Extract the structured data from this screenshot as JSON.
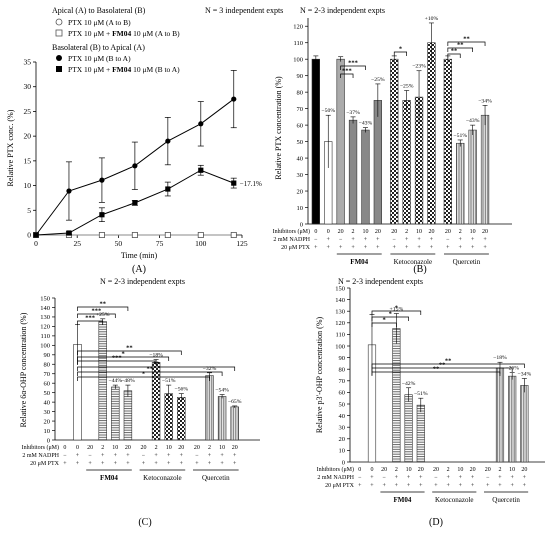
{
  "chart_data": [
    {
      "type": "line",
      "panel_label": "(A)",
      "n_note": "N = 3 independent expts",
      "xlabel": "Time (min)",
      "ylabel": "Relative PTX conc. (%)",
      "xlim": [
        0,
        125
      ],
      "ylim": [
        0,
        35
      ],
      "xticks": [
        "0",
        "25",
        "50",
        "75",
        "100",
        "125"
      ],
      "yticks": [
        "0",
        "5",
        "10",
        "15",
        "20",
        "25",
        "30",
        "35"
      ],
      "legend": {
        "heading1": "Apical (A) to Basolateral (B)",
        "item1": "PTX 10 μM (A to B)",
        "item2a": "PTX 10 μM + ",
        "item2b": "FM04",
        "item2c": " 10 μM (A to B)",
        "heading2": "Basolateral (B) to Apical (A)",
        "item3": "PTX 10 μM (B to A)",
        "item4a": "PTX 10 μM + ",
        "item4b": "FM04",
        "item4c": " 10 μM (B to A)"
      },
      "annotation": "−17.1%",
      "series": [
        {
          "marker": "open-circle",
          "x": [
            0,
            20,
            40,
            60,
            80,
            100,
            120
          ],
          "y": [
            0,
            0,
            0,
            0,
            0,
            0,
            0
          ],
          "err": [
            0,
            0,
            0,
            0,
            0,
            0,
            0
          ]
        },
        {
          "marker": "open-square",
          "x": [
            0,
            20,
            40,
            60,
            80,
            100,
            120
          ],
          "y": [
            0,
            0,
            0,
            0,
            0,
            0,
            0
          ],
          "err": [
            0,
            0,
            0,
            0,
            0,
            0,
            0
          ]
        },
        {
          "marker": "filled-circle",
          "x": [
            0,
            20,
            40,
            60,
            80,
            100,
            120
          ],
          "y": [
            0,
            8.9,
            11.1,
            14,
            19,
            22.5,
            27.5
          ],
          "err": [
            0,
            5.9,
            4.5,
            4.8,
            4.8,
            4.5,
            5.8
          ]
        },
        {
          "marker": "filled-square",
          "x": [
            0,
            20,
            40,
            60,
            80,
            100,
            120
          ],
          "y": [
            0,
            0.4,
            4.1,
            6.5,
            9.3,
            13.1,
            10.5
          ],
          "err": [
            0,
            0.3,
            1.4,
            0.5,
            1.4,
            1,
            1
          ]
        }
      ]
    },
    {
      "type": "bar",
      "panel_label": "(B)",
      "n_note": "N = 2-3 independent expts",
      "ylabel": "Relative PTX concentration (%)",
      "ylim": [
        0,
        125
      ],
      "yticks": [
        "0",
        "10",
        "20",
        "30",
        "40",
        "50",
        "60",
        "70",
        "80",
        "90",
        "100",
        "110",
        "120"
      ],
      "rows": {
        "inhibitors": "Inhibitors (μM)",
        "nadph": "2 mM NADPH",
        "ptx": "20 μM PTX"
      },
      "inhibitor_values": [
        "0",
        "0",
        "20",
        "2",
        "10",
        "20",
        "20",
        "2",
        "10",
        "20",
        "20",
        "2",
        "10",
        "20"
      ],
      "nadph_values": [
        "−",
        "+",
        "−",
        "+",
        "+",
        "+",
        "−",
        "+",
        "+",
        "+",
        "−",
        "+",
        "+",
        "+"
      ],
      "ptx_values": [
        "+",
        "+",
        "+",
        "+",
        "+",
        "+",
        "+",
        "+",
        "+",
        "+",
        "+",
        "+",
        "+",
        "+"
      ],
      "groups": [
        {
          "name": "FM04",
          "bold": true
        },
        {
          "name": "Ketoconazole",
          "bold": false
        },
        {
          "name": "Quercetin",
          "bold": false
        }
      ],
      "values": [
        100,
        50,
        100,
        63,
        57,
        75,
        100,
        75,
        77,
        110,
        100,
        49,
        57,
        66
      ],
      "errors": [
        2,
        16,
        1.5,
        2,
        1.5,
        10,
        2,
        6,
        16,
        12,
        2,
        2,
        3,
        6
      ],
      "pct_labels": [
        "",
        "−50%",
        "",
        "−37%",
        "−43%",
        "−25%",
        "",
        "−25%",
        "−23%",
        "+10%",
        "",
        "−51%",
        "−43%",
        "−34%"
      ],
      "sig": [
        {
          "from": 2,
          "to": 3,
          "label": "***"
        },
        {
          "from": 2,
          "to": 4,
          "label": "***"
        },
        {
          "from": 6,
          "to": 7,
          "label": "*"
        },
        {
          "from": 10,
          "to": 11,
          "label": "**"
        },
        {
          "from": 10,
          "to": 12,
          "label": "**"
        },
        {
          "from": 10,
          "to": 13,
          "label": "**"
        }
      ]
    },
    {
      "type": "bar",
      "panel_label": "(C)",
      "n_note": "N = 2-3 independent expts",
      "ylabel": "Relative 6α-OHP concentration (%)",
      "ylim": [
        0,
        150
      ],
      "yticks": [
        "0",
        "10",
        "20",
        "30",
        "40",
        "50",
        "60",
        "70",
        "80",
        "90",
        "100",
        "110",
        "120",
        "130",
        "140",
        "150"
      ],
      "rows": {
        "inhibitors": "Inhibitors (μM)",
        "nadph": "2 mM NADPH",
        "ptx": "20 μM PTX"
      },
      "inhibitor_values": [
        "0",
        "0",
        "20",
        "2",
        "10",
        "20",
        "20",
        "2",
        "10",
        "20",
        "20",
        "2",
        "10",
        "20"
      ],
      "nadph_values": [
        "−",
        "+",
        "−",
        "+",
        "+",
        "+",
        "−",
        "+",
        "+",
        "+",
        "−",
        "+",
        "+",
        "+"
      ],
      "ptx_values": [
        "+",
        "+",
        "+",
        "+",
        "+",
        "+",
        "+",
        "+",
        "+",
        "+",
        "+",
        "+",
        "+",
        "+"
      ],
      "groups": [
        {
          "name": "FM04",
          "bold": true
        },
        {
          "name": "Ketoconazole",
          "bold": false
        },
        {
          "name": "Quercetin",
          "bold": false
        }
      ],
      "values": [
        0,
        101,
        0,
        125,
        56,
        52,
        0,
        82,
        49,
        45,
        0,
        68,
        46,
        35
      ],
      "errors": [
        0,
        21,
        0,
        3,
        2,
        6,
        0,
        3,
        9,
        4,
        0,
        3,
        2,
        1
      ],
      "pct_labels": [
        "",
        "",
        "",
        "+25%",
        "−44%",
        "−48%",
        "",
        "−18%",
        "−51%",
        "−56%",
        "",
        "−32%",
        "−54%",
        "−65%"
      ],
      "sig": [
        {
          "from": 1,
          "to": 3,
          "label": "***"
        },
        {
          "from": 1,
          "to": 4,
          "label": "***"
        },
        {
          "from": 1,
          "to": 5,
          "label": "**"
        },
        {
          "from": 1,
          "to": 7,
          "label": "***"
        },
        {
          "from": 1,
          "to": 8,
          "label": "*"
        },
        {
          "from": 1,
          "to": 9,
          "label": "**"
        },
        {
          "from": 1,
          "to": 11,
          "label": "*"
        },
        {
          "from": 1,
          "to": 12,
          "label": "**"
        },
        {
          "from": 1,
          "to": 13,
          "label": "**"
        }
      ]
    },
    {
      "type": "bar",
      "panel_label": "(D)",
      "n_note": "N = 2-3 independent expts",
      "ylabel": "Relative p3′-OHP concentration (%)",
      "ylim": [
        0,
        150
      ],
      "yticks": [
        "0",
        "10",
        "20",
        "30",
        "40",
        "50",
        "60",
        "70",
        "80",
        "90",
        "100",
        "110",
        "120",
        "130",
        "140",
        "150"
      ],
      "rows": {
        "inhibitors": "Inhibitors (μM)",
        "nadph": "2 mM NADPH",
        "ptx": "20 μM PTX"
      },
      "inhibitor_values": [
        "0",
        "0",
        "20",
        "2",
        "10",
        "20",
        "20",
        "2",
        "10",
        "20",
        "20",
        "2",
        "10",
        "20"
      ],
      "nadph_values": [
        "−",
        "+",
        "−",
        "+",
        "+",
        "+",
        "−",
        "+",
        "+",
        "+",
        "−",
        "+",
        "+",
        "+"
      ],
      "ptx_values": [
        "+",
        "+",
        "+",
        "+",
        "+",
        "+",
        "+",
        "+",
        "+",
        "+",
        "+",
        "+",
        "+",
        "+"
      ],
      "groups": [
        {
          "name": "FM04",
          "bold": true
        },
        {
          "name": "Ketoconazole",
          "bold": false
        },
        {
          "name": "Quercetin",
          "bold": false
        }
      ],
      "values": [
        0,
        101,
        0,
        115,
        58,
        49,
        0,
        0,
        0,
        0,
        0,
        81,
        74,
        66
      ],
      "errors": [
        0,
        26,
        0,
        13,
        6,
        6,
        0,
        0,
        0,
        0,
        0,
        5,
        3,
        6
      ],
      "pct_labels": [
        "",
        "",
        "",
        "+15%",
        "−42%",
        "−51%",
        "",
        "",
        "",
        "",
        "",
        "−18%",
        "−26%",
        "−34%"
      ],
      "sig": [
        {
          "from": 1,
          "to": 3,
          "label": "*"
        },
        {
          "from": 1,
          "to": 4,
          "label": "*"
        },
        {
          "from": 1,
          "to": 5,
          "label": "*"
        },
        {
          "from": 1,
          "to": 11,
          "label": "**"
        },
        {
          "from": 1,
          "to": 12,
          "label": "**"
        },
        {
          "from": 1,
          "to": 13,
          "label": "**"
        }
      ]
    }
  ]
}
